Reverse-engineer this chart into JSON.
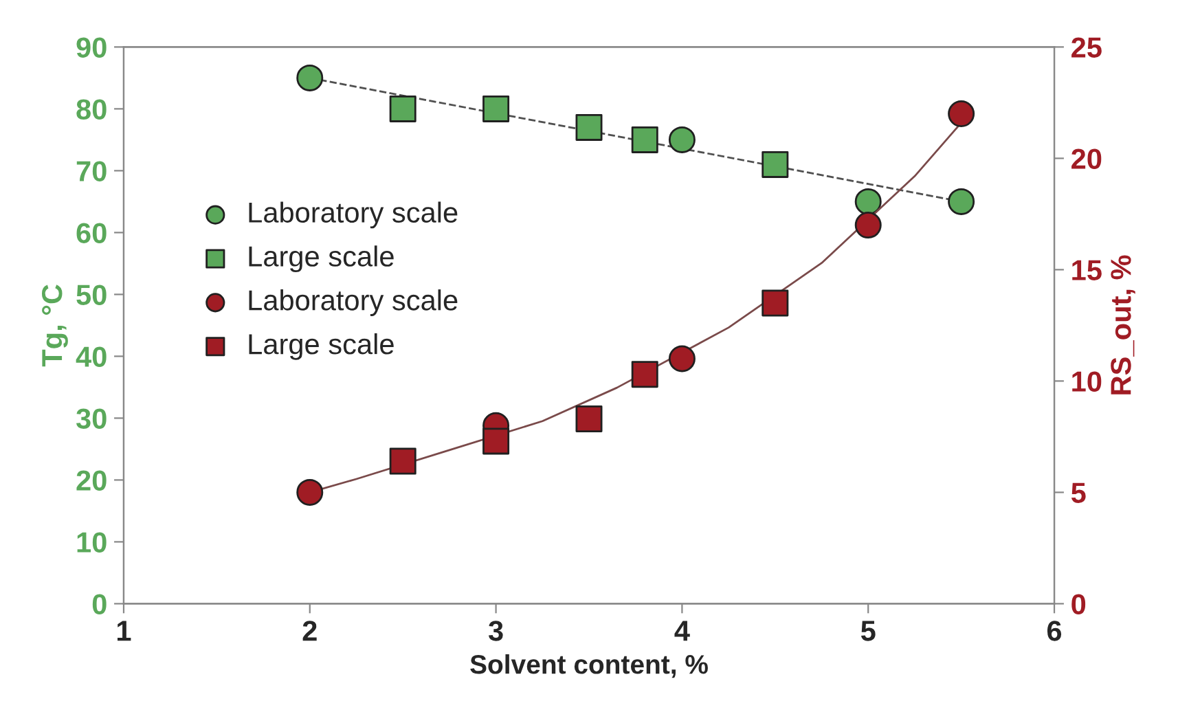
{
  "chart_data": {
    "type": "scatter",
    "xlabel": "Solvent content, %",
    "ylabel": "Tg, °C",
    "y2label": "RS_out, %",
    "xlim": [
      1,
      6
    ],
    "xticks": [
      1,
      2,
      3,
      4,
      5,
      6
    ],
    "ylim": [
      0,
      90
    ],
    "yticks": [
      0,
      10,
      20,
      30,
      40,
      50,
      60,
      70,
      80,
      90
    ],
    "y2lim": [
      0,
      25
    ],
    "y2ticks": [
      0,
      5,
      10,
      15,
      20,
      25
    ],
    "grid": false,
    "legend": "left",
    "series": [
      {
        "name": "Laboratory scale",
        "marker": "circle",
        "color": "#5aa85a",
        "x": [
          2,
          4,
          5,
          5.5
        ],
        "values": [
          85,
          75,
          65,
          65
        ]
      },
      {
        "name": "Large scale",
        "marker": "square",
        "color": "#5aa85a",
        "x": [
          2.5,
          3,
          3.5,
          3.8,
          4.5
        ],
        "values": [
          80,
          80,
          77,
          75,
          71
        ]
      },
      {
        "name": "Laboratory scale",
        "marker": "circle",
        "color": "#a01c24",
        "axis": "y2",
        "x": [
          2,
          3,
          4,
          5,
          5.5
        ],
        "values": [
          5.0,
          8.0,
          11.0,
          17.0,
          22.0
        ]
      },
      {
        "name": "Large scale",
        "marker": "square",
        "color": "#a01c24",
        "axis": "y2",
        "x": [
          2.5,
          3,
          3.5,
          3.8,
          4.5
        ],
        "values": [
          6.4,
          7.3,
          8.3,
          10.3,
          13.5
        ]
      },
      {
        "type": "line",
        "marker": "none",
        "line_style": "dashed",
        "color": "#505050",
        "x": [
          2,
          5.5
        ],
        "values": [
          85,
          65
        ]
      },
      {
        "type": "line",
        "marker": "none",
        "line_style": "solid",
        "color": "#7a4a4a",
        "axis": "y2",
        "x": [
          2,
          2.25,
          2.75,
          3.25,
          3.65,
          4.25,
          4.75,
          5.25,
          5.5
        ],
        "values": [
          5.0,
          5.6,
          6.9,
          8.2,
          9.7,
          12.4,
          15.3,
          19.2,
          21.6
        ]
      }
    ]
  }
}
